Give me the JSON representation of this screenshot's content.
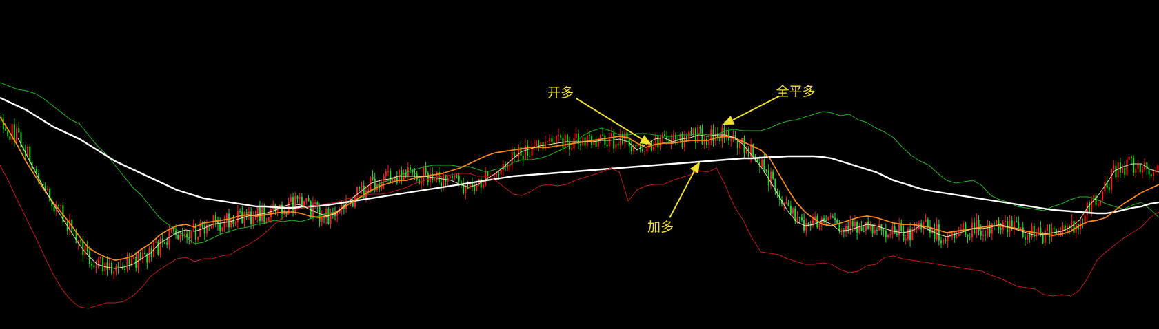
{
  "chart_data": {
    "type": "candlestick",
    "grid": false,
    "legend": "none",
    "colors": {
      "background": "#000000",
      "up": "#ff1a1a",
      "down": "#22dd22",
      "ma_long": "#ffffff",
      "ma_mid": "#ff8c1a",
      "ma_short": "#e8e8b0",
      "band_upper": "#1fb51f",
      "band_lower": "#c41818",
      "annotation": "#f2e12e"
    },
    "series": [
      {
        "key": "band_upper",
        "color": "#1fb51f",
        "values": [
          120,
          125,
          130,
          132,
          136,
          144,
          154,
          164,
          174,
          180,
          196,
          212,
          224,
          240,
          256,
          272,
          284,
          300,
          316,
          326,
          334,
          344,
          354,
          352,
          346,
          340,
          336,
          332,
          330,
          326,
          324,
          320,
          322,
          320,
          322,
          318,
          314,
          310,
          308,
          300,
          292,
          286,
          278,
          266,
          262,
          256,
          250,
          246,
          242,
          240,
          240,
          240,
          242,
          242,
          246,
          250,
          246,
          244,
          236,
          232,
          232,
          230,
          226,
          220,
          214,
          206,
          196,
          190,
          186,
          190,
          196,
          196,
          194,
          194,
          196,
          198,
          198,
          196,
          196,
          194,
          196,
          196,
          190,
          188,
          190,
          190,
          190,
          186,
          180,
          176,
          174,
          170,
          166,
          162,
          164,
          168,
          166,
          174,
          178,
          186,
          192,
          200,
          214,
          226,
          234,
          240,
          252,
          262,
          266,
          264,
          262,
          270,
          284,
          290,
          294,
          300,
          302,
          304,
          306,
          300,
          296,
          290,
          286,
          286,
          290,
          296,
          300,
          304,
          298,
          294,
          304,
          316
        ]
      },
      {
        "key": "ma_long",
        "color": "#ffffff",
        "values": [
          142,
          148,
          154,
          160,
          168,
          176,
          184,
          190,
          196,
          202,
          210,
          218,
          226,
          234,
          240,
          246,
          252,
          258,
          264,
          270,
          276,
          280,
          284,
          288,
          290,
          292,
          294,
          296,
          298,
          300,
          300,
          301,
          302,
          302,
          301,
          300,
          299,
          298,
          296,
          294,
          292,
          290,
          288,
          286,
          284,
          282,
          280,
          278,
          276,
          274,
          272,
          270,
          268,
          266,
          264,
          262,
          260,
          258,
          256,
          255,
          254,
          253,
          252,
          251,
          250,
          249,
          248,
          247,
          246,
          245,
          244,
          243,
          242,
          241,
          240,
          239,
          238,
          237,
          236,
          235,
          234,
          233,
          232,
          231,
          230,
          230,
          229,
          228,
          228,
          227,
          227,
          227,
          227,
          228,
          230,
          234,
          238,
          242,
          246,
          250,
          256,
          262,
          266,
          270,
          274,
          277,
          279,
          281,
          283,
          285,
          287,
          289,
          291,
          293,
          295,
          297,
          299,
          301,
          303,
          305,
          306,
          307,
          308,
          309,
          310,
          310,
          308,
          305,
          302,
          300,
          296,
          294
        ]
      },
      {
        "key": "ma_mid",
        "color": "#ff8c1a",
        "values": [
          170,
          190,
          212,
          236,
          256,
          276,
          294,
          310,
          326,
          344,
          360,
          368,
          374,
          378,
          376,
          372,
          362,
          354,
          342,
          334,
          328,
          326,
          330,
          324,
          322,
          320,
          318,
          314,
          312,
          314,
          312,
          310,
          308,
          308,
          310,
          314,
          316,
          314,
          308,
          300,
          292,
          284,
          276,
          270,
          266,
          262,
          262,
          258,
          256,
          254,
          252,
          248,
          244,
          238,
          232,
          226,
          222,
          220,
          218,
          216,
          214,
          214,
          214,
          212,
          210,
          208,
          206,
          204,
          202,
          200,
          198,
          200,
          208,
          214,
          210,
          208,
          208,
          206,
          204,
          204,
          204,
          200,
          198,
          200,
          206,
          212,
          218,
          230,
          252,
          274,
          294,
          308,
          318,
          326,
          328,
          324,
          320,
          316,
          314,
          316,
          320,
          324,
          326,
          326,
          328,
          330,
          334,
          338,
          336,
          334,
          332,
          330,
          328,
          328,
          330,
          332,
          336,
          338,
          340,
          342,
          340,
          336,
          328,
          322,
          320,
          316,
          306,
          296,
          288,
          280,
          274,
          268
        ]
      },
      {
        "key": "band_lower",
        "color": "#c41818",
        "values": [
          240,
          264,
          292,
          318,
          344,
          372,
          398,
          420,
          436,
          446,
          448,
          444,
          440,
          440,
          438,
          430,
          418,
          402,
          392,
          384,
          376,
          374,
          380,
          376,
          376,
          372,
          370,
          362,
          356,
          348,
          338,
          326,
          316,
          306,
          302,
          300,
          298,
          296,
          294,
          290,
          286,
          284,
          282,
          282,
          280,
          276,
          272,
          266,
          262,
          258,
          256,
          254,
          252,
          252,
          256,
          256,
          262,
          272,
          282,
          284,
          278,
          270,
          268,
          270,
          268,
          262,
          258,
          254,
          250,
          244,
          250,
          292,
          276,
          270,
          268,
          268,
          262,
          258,
          254,
          248,
          250,
          244,
          270,
          300,
          320,
          346,
          366,
          368,
          370,
          376,
          380,
          384,
          384,
          382,
          384,
          392,
          396,
          394,
          386,
          384,
          374,
          372,
          376,
          378,
          380,
          382,
          384,
          386,
          388,
          390,
          392,
          394,
          400,
          404,
          410,
          416,
          418,
          420,
          428,
          430,
          428,
          430,
          422,
          402,
          378,
          366,
          356,
          346,
          338,
          330,
          316,
          308
        ]
      },
      {
        "key": "ma_short",
        "color": "#e8e8b0",
        "values": [
          null,
          null,
          200,
          225,
          250,
          274,
          296,
          316,
          336,
          356,
          372,
          384,
          388,
          390,
          388,
          384,
          376,
          368,
          354,
          346,
          338,
          334,
          336,
          332,
          326,
          324,
          322,
          318,
          314,
          312,
          310,
          306,
          300,
          296,
          298,
          304,
          310,
          314,
          310,
          298,
          286,
          276,
          266,
          262,
          260,
          256,
          256,
          256,
          256,
          258,
          260,
          262,
          268,
          272,
          268,
          260,
          252,
          242,
          230,
          220,
          216,
          212,
          210,
          208,
          206,
          206,
          206,
          206,
          204,
          204,
          202,
          206,
          218,
          210,
          202,
          200,
          206,
          202,
          200,
          196,
          198,
          196,
          196,
          200,
          210,
          226,
          242,
          262,
          284,
          306,
          322,
          328,
          326,
          320,
          326,
          336,
          334,
          330,
          326,
          328,
          332,
          336,
          338,
          336,
          328,
          334,
          340,
          344,
          340,
          336,
          332,
          332,
          330,
          326,
          330,
          334,
          338,
          342,
          340,
          338,
          336,
          330,
          320,
          300,
          286,
          268,
          248,
          242,
          238,
          238,
          246,
          250
        ]
      }
    ],
    "annotations": [
      {
        "text": "开多",
        "index": 68
      },
      {
        "text": "加多",
        "index": 72
      },
      {
        "text": "全平多",
        "index": 76
      }
    ]
  }
}
